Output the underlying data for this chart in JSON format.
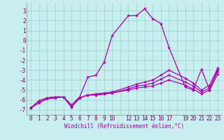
{
  "xlabel": "Windchill (Refroidissement éolien,°C)",
  "background_color": "#c8eef0",
  "grid_color": "#a0d8d0",
  "line_color": "#aa00aa",
  "xlim": [
    -0.5,
    23.5
  ],
  "ylim": [
    -7.5,
    3.8
  ],
  "xticks": [
    0,
    1,
    2,
    3,
    4,
    5,
    6,
    7,
    8,
    9,
    10,
    11,
    12,
    13,
    14,
    15,
    16,
    17,
    18,
    19,
    20,
    21,
    22,
    23
  ],
  "xticklabels": [
    "0",
    "1",
    "2",
    "3",
    "4",
    "5",
    "6",
    "7",
    "8",
    "9",
    "10",
    "",
    "12",
    "13",
    "14",
    "15",
    "16",
    "17",
    "",
    "19",
    "20",
    "21",
    "22",
    "23"
  ],
  "yticks": [
    -7,
    -6,
    -5,
    -4,
    -3,
    -2,
    -1,
    0,
    1,
    2,
    3
  ],
  "lines": [
    {
      "x": [
        0,
        1,
        2,
        3,
        4,
        5,
        6,
        7,
        8,
        9,
        10,
        12,
        13,
        14,
        15,
        16,
        17,
        19,
        20,
        21,
        22,
        23
      ],
      "y": [
        -6.8,
        -6.3,
        -5.9,
        -5.8,
        -5.7,
        -6.5,
        -5.7,
        -3.7,
        -3.5,
        -2.2,
        0.5,
        2.5,
        2.5,
        3.2,
        2.2,
        1.7,
        -0.7,
        -4.7,
        -5.0,
        -2.9,
        -5.0,
        -2.9
      ]
    },
    {
      "x": [
        0,
        1,
        2,
        3,
        4,
        5,
        6,
        7,
        8,
        9,
        10,
        12,
        13,
        14,
        15,
        16,
        17,
        19,
        20,
        21,
        22,
        23
      ],
      "y": [
        -6.8,
        -6.1,
        -5.8,
        -5.7,
        -5.7,
        -6.7,
        -5.8,
        -5.5,
        -5.5,
        -5.4,
        -5.3,
        -5.0,
        -4.8,
        -4.7,
        -4.6,
        -4.3,
        -4.0,
        -4.5,
        -4.9,
        -5.4,
        -5.0,
        -3.4
      ]
    },
    {
      "x": [
        0,
        1,
        2,
        3,
        4,
        5,
        6,
        7,
        8,
        9,
        10,
        12,
        13,
        14,
        15,
        16,
        17,
        19,
        20,
        21,
        22,
        23
      ],
      "y": [
        -6.8,
        -6.1,
        -5.8,
        -5.7,
        -5.7,
        -6.7,
        -5.8,
        -5.5,
        -5.5,
        -5.4,
        -5.3,
        -4.9,
        -4.6,
        -4.5,
        -4.3,
        -3.9,
        -3.5,
        -4.2,
        -4.6,
        -5.2,
        -4.8,
        -3.1
      ]
    },
    {
      "x": [
        0,
        1,
        2,
        3,
        4,
        5,
        6,
        7,
        8,
        9,
        10,
        12,
        13,
        14,
        15,
        16,
        17,
        19,
        20,
        21,
        22,
        23
      ],
      "y": [
        -6.8,
        -6.1,
        -5.8,
        -5.7,
        -5.7,
        -6.7,
        -5.8,
        -5.5,
        -5.4,
        -5.3,
        -5.2,
        -4.7,
        -4.4,
        -4.2,
        -4.0,
        -3.5,
        -3.0,
        -3.8,
        -4.3,
        -5.0,
        -4.5,
        -2.8
      ]
    }
  ]
}
